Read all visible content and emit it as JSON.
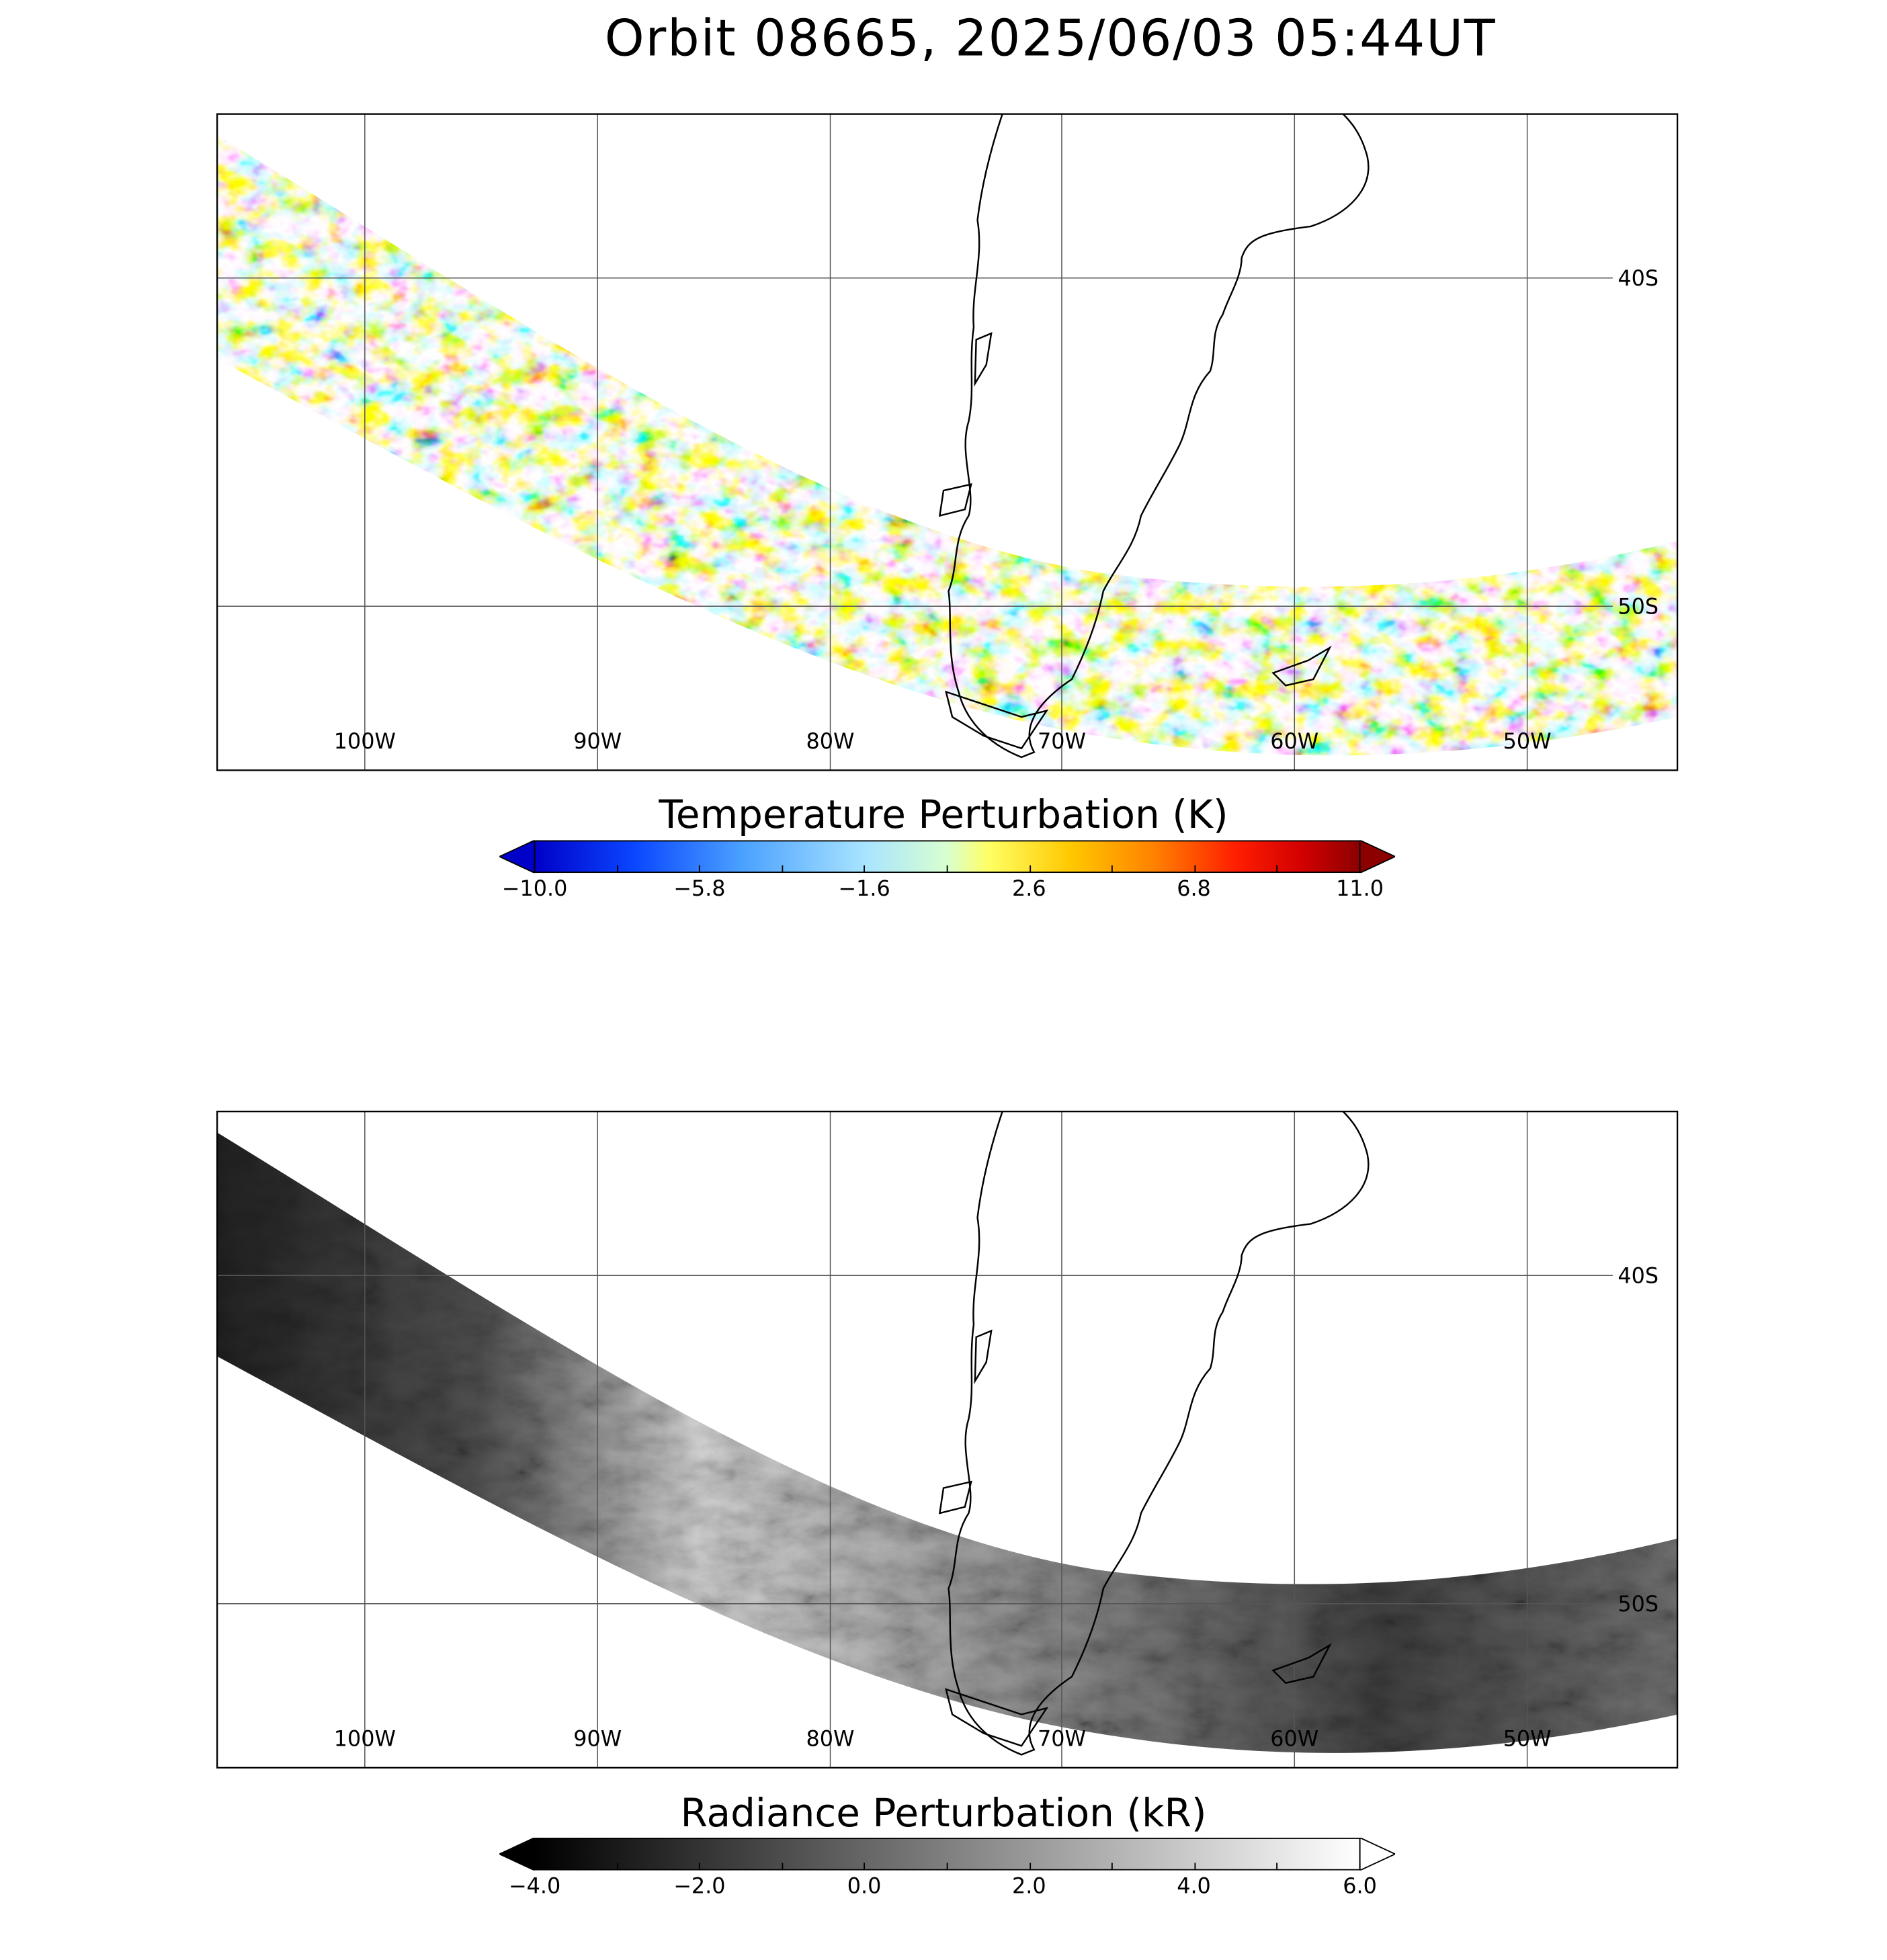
{
  "title": "Orbit 08665, 2025/06/03 05:44UT",
  "map": {
    "lon_labels": [
      "100W",
      "90W",
      "80W",
      "70W",
      "60W",
      "50W"
    ],
    "lat_labels": [
      "40S",
      "50S"
    ],
    "grid": true
  },
  "panels": [
    {
      "name": "temperature",
      "colorbar": {
        "title": "Temperature Perturbation (K)",
        "tick_labels": [
          "−10.0",
          "−5.8",
          "−1.6",
          "2.6",
          "6.8",
          "11.0"
        ],
        "range": [
          -10.0,
          11.0
        ],
        "colors": [
          "#00008c",
          "#0000e0",
          "#1e64ff",
          "#55aaff",
          "#9ed8ff",
          "#c8f0ff",
          "#ffff78",
          "#ffd200",
          "#ff9600",
          "#ff5000",
          "#e60000",
          "#8c0000"
        ],
        "extend": "both"
      }
    },
    {
      "name": "radiance",
      "colorbar": {
        "title": "Radiance Perturbation (kR)",
        "tick_labels": [
          "−4.0",
          "−2.0",
          "0.0",
          "2.0",
          "4.0",
          "6.0"
        ],
        "range": [
          -4.0,
          6.0
        ],
        "colors": [
          "#000000",
          "#ffffff"
        ],
        "extend": "both"
      }
    }
  ]
}
